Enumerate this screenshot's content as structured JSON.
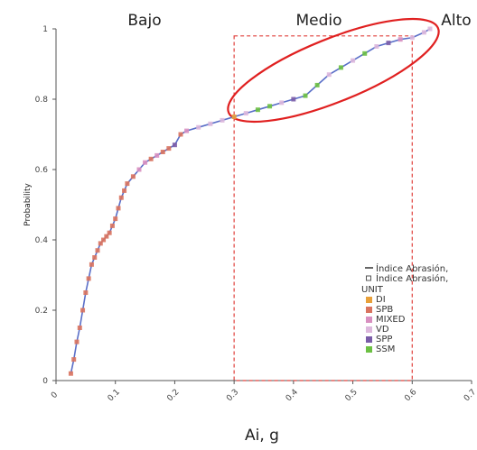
{
  "chart_data": {
    "type": "line",
    "title": "",
    "xlabel": "Ai, g",
    "ylabel": "Probability",
    "xlim": [
      0,
      0.7
    ],
    "ylim": [
      0,
      1
    ],
    "x_ticks": [
      "0",
      "0.1",
      "0.2",
      "0.3",
      "0.4",
      "0.5",
      "0.6",
      "0.7"
    ],
    "y_ticks": [
      "0",
      "0.2",
      "0.4",
      "0.6",
      "0.8",
      "1"
    ],
    "zones": [
      "Bajo",
      "Medio",
      "Alto"
    ],
    "legend": {
      "position": "bottom-right",
      "entries": [
        "Índice Abrasión,",
        "Índice Abrasión,"
      ],
      "group_title": "UNIT",
      "units": [
        {
          "name": "DI",
          "color": "#e8a03a"
        },
        {
          "name": "SPB",
          "color": "#d9735f"
        },
        {
          "name": "MIXED",
          "color": "#d88fc0"
        },
        {
          "name": "VD",
          "color": "#ddb8dd"
        },
        {
          "name": "SPP",
          "color": "#7a5ca8"
        },
        {
          "name": "SSM",
          "color": "#6cc043"
        }
      ]
    },
    "line_color": "#5a6fc8",
    "highlight_box": {
      "x": [
        0.3,
        0.6
      ],
      "y": [
        0,
        0.98
      ],
      "color": "#e0403c"
    },
    "highlight_ellipse_color": "#e02020",
    "series": [
      {
        "x": [
          0.025,
          0.03,
          0.035,
          0.04,
          0.045,
          0.05,
          0.055,
          0.06,
          0.065,
          0.07,
          0.075,
          0.08,
          0.085,
          0.09,
          0.095,
          0.1,
          0.105,
          0.11,
          0.115,
          0.12,
          0.13,
          0.14,
          0.15,
          0.16,
          0.17,
          0.18,
          0.19,
          0.2,
          0.21,
          0.22,
          0.24,
          0.26,
          0.28,
          0.3,
          0.32,
          0.34,
          0.36,
          0.38,
          0.4,
          0.42,
          0.44,
          0.46,
          0.48,
          0.5,
          0.52,
          0.54,
          0.56,
          0.58,
          0.6,
          0.62,
          0.63
        ],
        "y": [
          0.02,
          0.06,
          0.11,
          0.15,
          0.2,
          0.25,
          0.29,
          0.33,
          0.35,
          0.37,
          0.39,
          0.4,
          0.41,
          0.42,
          0.44,
          0.46,
          0.49,
          0.52,
          0.54,
          0.56,
          0.58,
          0.6,
          0.62,
          0.63,
          0.64,
          0.65,
          0.66,
          0.67,
          0.7,
          0.71,
          0.72,
          0.73,
          0.74,
          0.75,
          0.76,
          0.77,
          0.78,
          0.79,
          0.8,
          0.81,
          0.84,
          0.87,
          0.89,
          0.91,
          0.93,
          0.95,
          0.96,
          0.97,
          0.975,
          0.99,
          1.0
        ],
        "unit": [
          "SPB",
          "SPB",
          "SPB",
          "SPB",
          "SPB",
          "SPB",
          "SPB",
          "SPB",
          "SPB",
          "SPB",
          "SPB",
          "SPB",
          "SPB",
          "SPB",
          "SPB",
          "SPB",
          "SPB",
          "SPB",
          "SPB",
          "SPB",
          "SPB",
          "MIXED",
          "MIXED",
          "SPB",
          "MIXED",
          "SPB",
          "SPB",
          "SPP",
          "SPB",
          "MIXED",
          "VD",
          "VD",
          "VD",
          "DI",
          "VD",
          "SSM",
          "SSM",
          "VD",
          "SPP",
          "SSM",
          "SSM",
          "VD",
          "SSM",
          "VD",
          "SSM",
          "VD",
          "SPP",
          "MIXED",
          "VD",
          "VD",
          "VD"
        ]
      }
    ]
  }
}
